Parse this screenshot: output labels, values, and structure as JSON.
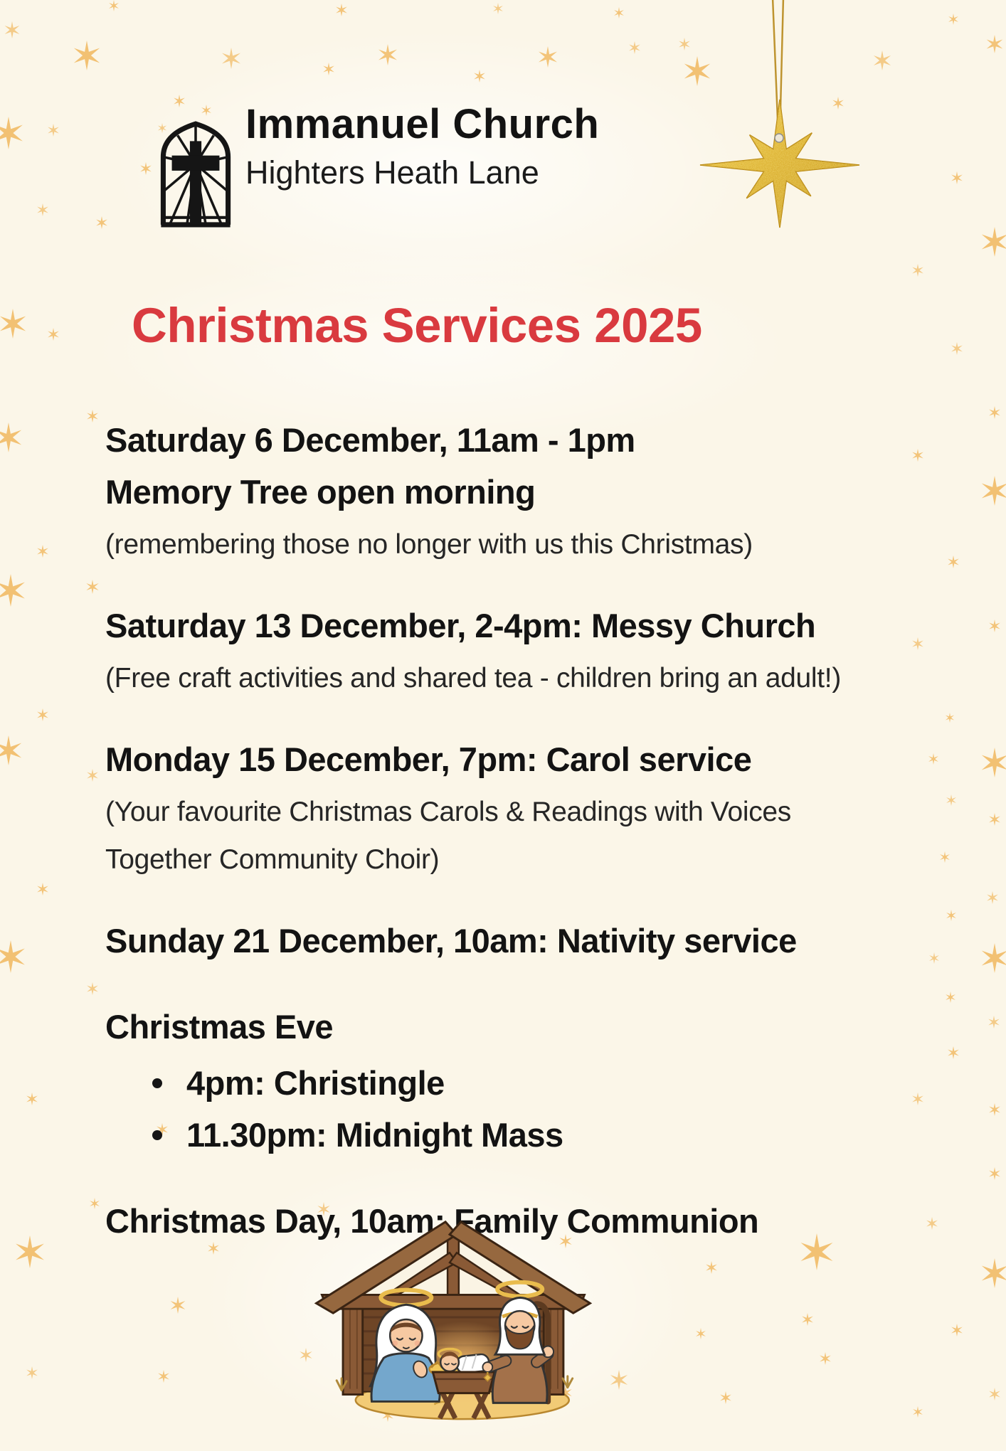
{
  "page": {
    "bg_color": "#FBF6E8",
    "star_color": "#F2C173",
    "accent_color": "#D93A3F",
    "text_color": "#131313"
  },
  "header": {
    "logo_icon": "church-window-cross-logo",
    "church_name": "Immanuel Church",
    "church_address": "Highters Heath Lane"
  },
  "title": {
    "text": "Christmas Services 2025"
  },
  "events": [
    {
      "heading_lines": [
        "Saturday 6 December, 11am - 1pm",
        "Memory Tree open morning"
      ],
      "note_lines": [
        "(remembering those no longer with us this Christmas)"
      ]
    },
    {
      "heading_lines": [
        "Saturday 13 December, 2-4pm: Messy Church"
      ],
      "note_lines": [
        "(Free craft activities and shared tea - children bring an adult!)"
      ]
    },
    {
      "heading_lines": [
        "Monday 15 December, 7pm: Carol service"
      ],
      "note_lines": [
        "(Your favourite Christmas Carols & Readings with Voices",
        "Together Community Choir)"
      ]
    },
    {
      "heading_lines": [
        "Sunday 21 December, 10am: Nativity service"
      ],
      "note_lines": []
    },
    {
      "heading_lines": [
        "Christmas Eve"
      ],
      "bullets": [
        "4pm: Christingle",
        "11.30pm: Midnight Mass"
      ],
      "note_lines": []
    },
    {
      "heading_lines": [
        "Christmas Day, 10am: Family Communion"
      ],
      "note_lines": []
    }
  ],
  "decor": {
    "hanging_ornament_icon": "gold-glitter-star-ornament",
    "background_pattern_icon": "gold-six-point-stars",
    "illustration_icon": "nativity-scene"
  }
}
